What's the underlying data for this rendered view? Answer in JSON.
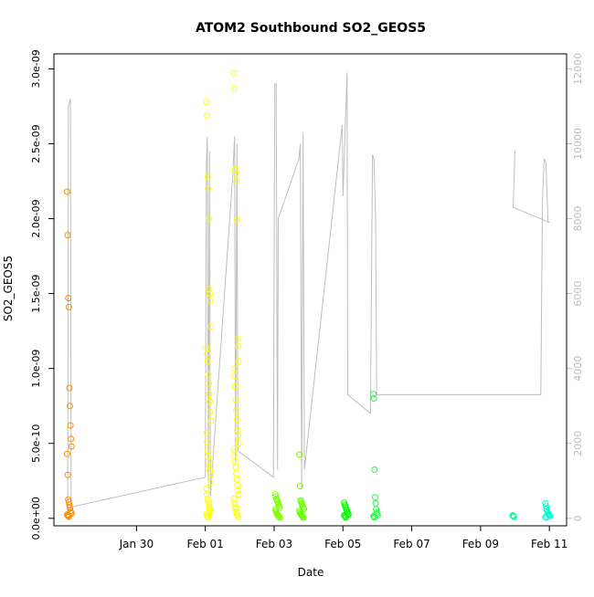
{
  "chart_data": {
    "type": "scatter",
    "title": "ATOM2 Southbound SO2_GEOS5",
    "xlabel": "Date",
    "ylabel": "SO2_GEOS5",
    "x_ticks": [
      "Jan 30",
      "Feb 01",
      "Feb 03",
      "Feb 05",
      "Feb 07",
      "Feb 09",
      "Feb 11"
    ],
    "x_tick_days": [
      30,
      32,
      34,
      36,
      38,
      40,
      42
    ],
    "xlim_days": [
      27.6,
      42.5
    ],
    "y_ticks": [
      "0.0e+00",
      "5.0e-10",
      "1.0e-09",
      "1.5e-09",
      "2.0e-09",
      "2.5e-09",
      "3.0e-09"
    ],
    "y_tick_values": [
      0,
      5e-10,
      1e-09,
      1.5e-09,
      2e-09,
      2.5e-09,
      3e-09
    ],
    "ylim": [
      -5e-11,
      3.1e-09
    ],
    "y2_ticks": [
      "0",
      "2000",
      "4000",
      "6000",
      "8000",
      "10000",
      "12000"
    ],
    "y2_tick_values": [
      0,
      2000,
      4000,
      6000,
      8000,
      10000,
      12000
    ],
    "y2lim": [
      -200,
      12400
    ],
    "y2_axis_color": "#bebebe",
    "altitude_line_color": "#bebebe",
    "flights": [
      {
        "day": 28.05,
        "color": "#ff8c00",
        "values": [
          2.18e-09,
          1.89e-09,
          1.47e-09,
          1.41e-09,
          8.7e-10,
          7.5e-10,
          6.2e-10,
          5.3e-10,
          4.8e-10,
          4.3e-10,
          2.9e-10,
          1.25e-10,
          1.1e-10,
          9e-11,
          7e-11,
          5e-11,
          4e-11,
          3.2e-11,
          2.5e-11,
          2e-11,
          1.5e-11,
          1e-11
        ]
      },
      {
        "day": 32.1,
        "color": "#ffff00",
        "values": [
          2.78e-09,
          2.69e-09,
          2.28e-09,
          2.2e-09,
          2e-09,
          1.53e-09,
          1.5e-09,
          1.45e-09,
          1.28e-09,
          1.14e-09,
          1.1e-09,
          1.05e-09,
          9.6e-10,
          9e-10,
          8.3e-10,
          7.8e-10,
          7.1e-10,
          6.5e-10,
          5.7e-10,
          5.1e-10,
          4.5e-10,
          4.1e-10,
          3.8e-10,
          3.5e-10,
          3.2e-10,
          2.9e-10,
          2.4e-10,
          2e-10,
          1.6e-10,
          1.3e-10,
          1.1e-10,
          9e-11,
          7e-11,
          6e-11,
          5e-11,
          4e-11,
          3e-11,
          2e-11,
          1e-11,
          5e-12
        ]
      },
      {
        "day": 32.9,
        "color": "#ffff00",
        "values": [
          2.97e-09,
          2.87e-09,
          2.33e-09,
          2.3e-09,
          2.25e-09,
          1.99e-09,
          1.2e-09,
          1.15e-09,
          1.05e-09,
          1e-09,
          9.5e-10,
          8.8e-10,
          7.9e-10,
          7.2e-10,
          6.6e-10,
          5.9e-10,
          5.5e-10,
          5e-10,
          4.6e-10,
          4.2e-10,
          3.8e-10,
          3.4e-10,
          3e-10,
          2.6e-10,
          2.2e-10,
          1.9e-10,
          1.6e-10,
          1.3e-10,
          1e-10,
          8e-11,
          6e-11,
          4e-11,
          3e-11,
          2e-11,
          1e-11
        ]
      },
      {
        "day": 34.1,
        "color": "#7fff00",
        "values": [
          1.6e-10,
          1.45e-10,
          1.3e-10,
          1.2e-10,
          1.1e-10,
          1e-10,
          9e-11,
          8e-11,
          7e-11,
          6e-11,
          5e-11,
          4e-11,
          3e-11,
          2.5e-11,
          2e-11,
          1.5e-11,
          1e-11,
          5e-12
        ]
      },
      {
        "day": 34.8,
        "color": "#66ff00",
        "values": [
          4.25e-10,
          2.15e-10,
          1.2e-10,
          1.1e-10,
          1e-10,
          9e-11,
          8e-11,
          7e-11,
          6e-11,
          5e-11,
          4e-11,
          3e-11,
          2.5e-11,
          2e-11,
          1.5e-11,
          1e-11,
          5e-12
        ]
      },
      {
        "day": 36.1,
        "color": "#00ff00",
        "values": [
          1.05e-10,
          9e-11,
          8e-11,
          7e-11,
          6e-11,
          5e-11,
          4e-11,
          3e-11,
          2.5e-11,
          2e-11,
          1.5e-11,
          1e-11,
          5e-12
        ]
      },
      {
        "day": 36.95,
        "color": "#22ff44",
        "values": [
          8.3e-10,
          8e-10,
          3.25e-10,
          1.4e-10,
          1e-10,
          6e-11,
          4e-11,
          3e-11,
          2e-11,
          1.5e-11,
          1e-11,
          5e-12
        ]
      },
      {
        "day": 41.0,
        "color": "#00ff99",
        "values": [
          2e-11,
          1.5e-11,
          1e-11
        ]
      },
      {
        "day": 41.95,
        "color": "#00ffcc",
        "values": [
          1e-10,
          8e-11,
          6e-11,
          5e-11,
          4e-11,
          3e-11,
          2.5e-11,
          2e-11,
          1.5e-11,
          1e-11,
          5e-12
        ]
      }
    ],
    "altitude_trace": [
      [
        28.0,
        200
      ],
      [
        28.02,
        11000
      ],
      [
        28.08,
        11200
      ],
      [
        28.1,
        300
      ],
      [
        32.0,
        1100
      ],
      [
        32.03,
        9500
      ],
      [
        32.06,
        10200
      ],
      [
        32.09,
        800
      ],
      [
        32.12,
        9800
      ],
      [
        32.15,
        600
      ],
      [
        32.8,
        9200
      ],
      [
        32.85,
        10200
      ],
      [
        32.88,
        1500
      ],
      [
        32.92,
        10000
      ],
      [
        32.95,
        1800
      ],
      [
        33.98,
        1100
      ],
      [
        34.02,
        11600
      ],
      [
        34.06,
        11600
      ],
      [
        34.1,
        1300
      ],
      [
        34.12,
        8000
      ],
      [
        34.72,
        9600
      ],
      [
        34.76,
        10000
      ],
      [
        34.8,
        800
      ],
      [
        34.84,
        10300
      ],
      [
        34.88,
        1300
      ],
      [
        35.98,
        10500
      ],
      [
        36.0,
        8600
      ],
      [
        36.12,
        11900
      ],
      [
        36.14,
        3300
      ],
      [
        36.8,
        2800
      ],
      [
        36.86,
        9700
      ],
      [
        36.9,
        9600
      ],
      [
        36.95,
        8100
      ],
      [
        36.98,
        3300
      ],
      [
        41.75,
        3300
      ],
      [
        41.8,
        8500
      ],
      [
        41.85,
        9600
      ],
      [
        41.9,
        9500
      ],
      [
        41.96,
        7900
      ],
      [
        42.0,
        7900
      ],
      [
        40.95,
        8300
      ],
      [
        41.0,
        9800
      ]
    ]
  }
}
